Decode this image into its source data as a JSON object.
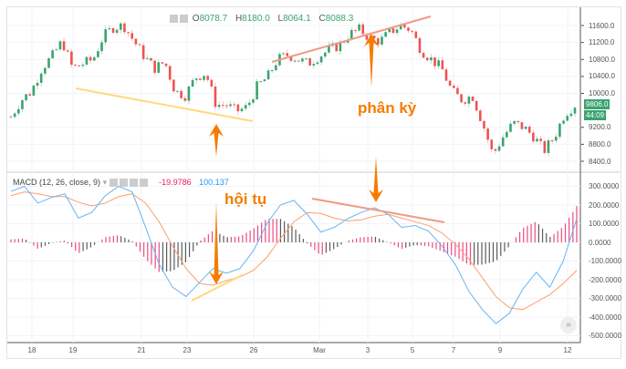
{
  "header": {
    "o_label": "O",
    "o": "8078.7",
    "h_label": "H",
    "h": "8180.0",
    "l_label": "L",
    "l": "8064.1",
    "c_label": "C",
    "c": "8088.3"
  },
  "macd_legend": {
    "title": "MACD (12, 26, close, 9)",
    "macd_value": "-19.9786",
    "signal_value": "100.137"
  },
  "annotations": {
    "convergence": "hội tụ",
    "divergence": "phân kỳ"
  },
  "price_badge": "9806.0",
  "countdown_badge": "44:09",
  "colors": {
    "up": "#3aa36f",
    "down": "#ef5350",
    "macd": "#64b5f6",
    "signal": "#ff9e6b",
    "histogram": "#e91e63",
    "arrow": "#f57c00",
    "line_yellow": "#ffd97a",
    "line_salmon": "#f19a84"
  },
  "chart_data": [
    {
      "type": "candlestick",
      "y_ticks": [
        "11600.0",
        "11200.0",
        "10800.0",
        "10400.0",
        "10000.0",
        "9200.0",
        "8800.0",
        "8400.0"
      ],
      "ylim": [
        8300,
        11700
      ],
      "x_ticks": [
        "18",
        "19",
        "21",
        "23",
        "26",
        "Mar",
        "3",
        "5",
        "7",
        "9",
        "12"
      ],
      "close_path": [
        9450,
        9840,
        10050,
        10590,
        10870,
        11230,
        10590,
        10700,
        10800,
        11340,
        11560,
        11600,
        11230,
        10870,
        10590,
        10740,
        10050,
        9950,
        10380,
        10480,
        9730,
        9730,
        9580,
        9670,
        10160,
        10380,
        10800,
        10910,
        10800,
        10700,
        10870,
        11020,
        11130,
        11390,
        11510,
        11300,
        11230,
        11450,
        11600,
        11500,
        11020,
        10800,
        10590,
        10050,
        9840,
        9950,
        9300,
        8550,
        8980,
        9300,
        9200,
        8980,
        8650,
        8980,
        9520,
        9730
      ],
      "grid": true
    },
    {
      "type": "line",
      "title": "MACD (12, 26, close, 9)",
      "y_ticks": [
        "300.0000",
        "200.0000",
        "100.0000",
        "0.0000",
        "-100.0000",
        "-200.0000",
        "-300.0000",
        "-400.0000",
        "-500.0000"
      ],
      "ylim": [
        -520,
        330
      ],
      "series": [
        {
          "values": [
            273,
            300,
            210,
            240,
            260,
            130,
            160,
            250,
            300,
            270,
            80,
            -117,
            -240,
            -290,
            -215,
            -140,
            -165,
            -140,
            -45,
            100,
            200,
            225,
            150,
            55,
            80,
            127,
            160,
            185,
            150,
            80,
            90,
            60,
            -20,
            -120,
            -263,
            -360,
            -435,
            -380,
            -250,
            -160,
            -240,
            -100,
            127
          ]
        },
        {
          "values": [
            250,
            270,
            260,
            245,
            245,
            215,
            195,
            210,
            245,
            260,
            210,
            110,
            -20,
            -140,
            -220,
            -230,
            -205,
            -185,
            -150,
            -80,
            20,
            110,
            160,
            155,
            130,
            115,
            120,
            140,
            150,
            130,
            110,
            90,
            50,
            -10,
            -90,
            -190,
            -290,
            -350,
            -360,
            -320,
            -280,
            -220,
            -150
          ]
        }
      ]
    }
  ]
}
